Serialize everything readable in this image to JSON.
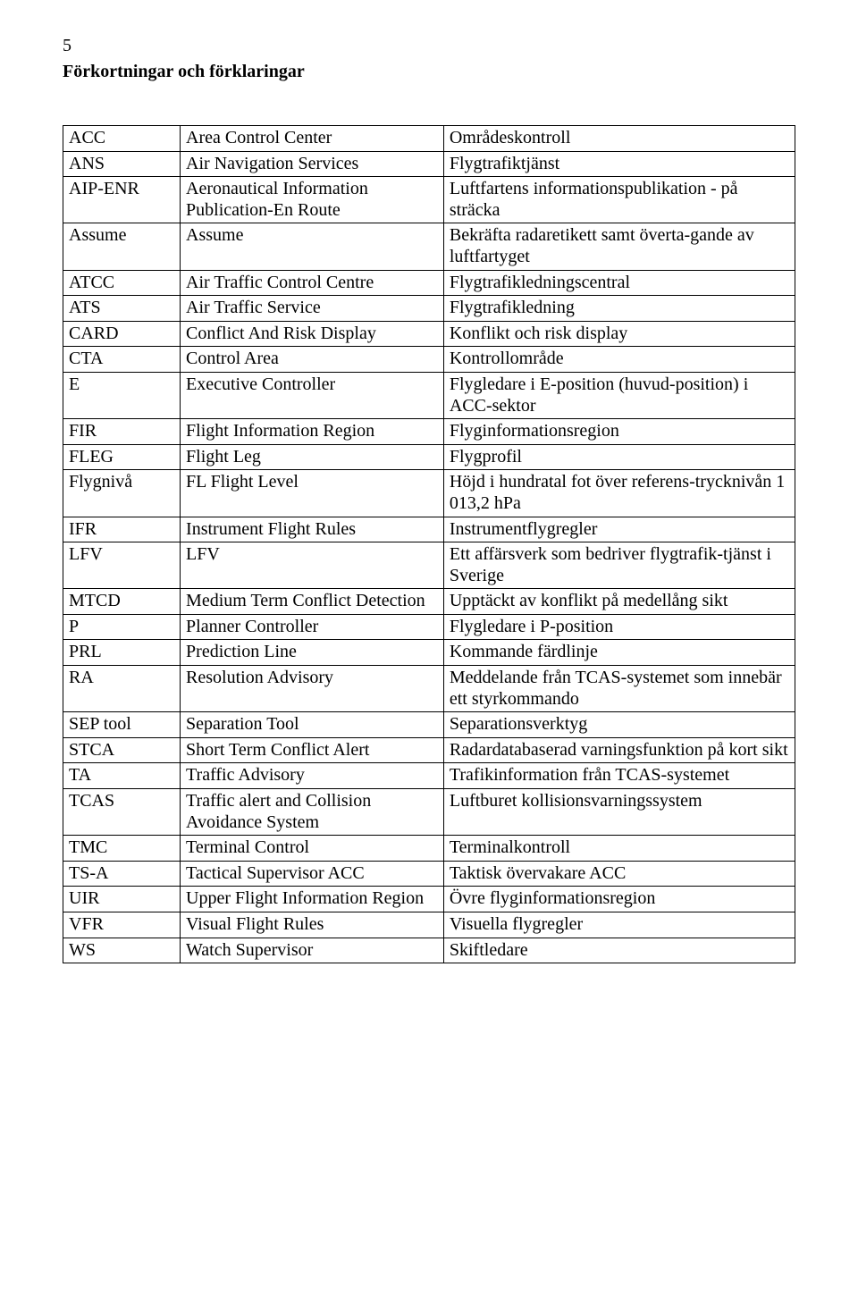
{
  "page_number": "5",
  "heading": "Förkortningar och förklaringar",
  "colors": {
    "text": "#000000",
    "background": "#ffffff",
    "border": "#000000"
  },
  "font": {
    "family": "Times New Roman",
    "size_body": 20,
    "size_heading": 20
  },
  "table": {
    "rows": [
      {
        "abbr": "ACC",
        "term": "Area Control Center",
        "desc": "Områdeskontroll"
      },
      {
        "abbr": "ANS",
        "term": "Air Navigation Services",
        "desc": "Flygtrafiktjänst"
      },
      {
        "abbr": "AIP-ENR",
        "term": "Aeronautical Information Publication-En Route",
        "desc": "Luftfartens informationspublikation - på sträcka"
      },
      {
        "abbr": "Assume",
        "term": "Assume",
        "desc": "Bekräfta radaretikett samt överta-gande av luftfartyget"
      },
      {
        "abbr": "ATCC",
        "term": "Air Traffic Control Centre",
        "desc": "Flygtrafikledningscentral"
      },
      {
        "abbr": "ATS",
        "term": "Air Traffic Service",
        "desc": "Flygtrafikledning"
      },
      {
        "abbr": "CARD",
        "term": "Conflict And Risk Display",
        "desc": "Konflikt och risk display"
      },
      {
        "abbr": "CTA",
        "term": "Control Area",
        "desc": "Kontrollområde"
      },
      {
        "abbr": "E",
        "term": "Executive Controller",
        "desc": "Flygledare i E-position (huvud-position) i ACC-sektor"
      },
      {
        "abbr": "FIR",
        "term": "Flight Information Region",
        "desc": "Flyginformationsregion"
      },
      {
        "abbr": "FLEG",
        "term": "Flight Leg",
        "desc": "Flygprofil"
      },
      {
        "abbr": "Flygnivå",
        "term": "FL Flight Level",
        "desc": "Höjd i hundratal fot över referens-trycknivån 1 013,2 hPa"
      },
      {
        "abbr": "IFR",
        "term": "Instrument Flight Rules",
        "desc": "Instrumentflygregler"
      },
      {
        "abbr": "LFV",
        "term": "LFV",
        "desc": "Ett affärsverk som bedriver flygtrafik-tjänst i Sverige"
      },
      {
        "abbr": "MTCD",
        "term": "Medium Term Conflict Detection",
        "desc": "Upptäckt av konflikt på medellång sikt"
      },
      {
        "abbr": "P",
        "term": "Planner Controller",
        "desc": "Flygledare i P-position"
      },
      {
        "abbr": "PRL",
        "term": "Prediction Line",
        "desc": "Kommande färdlinje"
      },
      {
        "abbr": "RA",
        "term": "Resolution Advisory",
        "desc": "Meddelande från TCAS-systemet som innebär ett styrkommando"
      },
      {
        "abbr": "SEP tool",
        "term": "Separation Tool",
        "desc": "Separationsverktyg"
      },
      {
        "abbr": "STCA",
        "term": "Short Term Conflict Alert",
        "desc": "Radardatabaserad varningsfunktion på kort sikt"
      },
      {
        "abbr": "TA",
        "term": "Traffic Advisory",
        "desc": "Trafikinformation från TCAS-systemet"
      },
      {
        "abbr": "TCAS",
        "term": "Traffic alert and Collision Avoidance System",
        "desc": "Luftburet kollisionsvarningssystem"
      },
      {
        "abbr": "TMC",
        "term": "Terminal Control",
        "desc": "Terminalkontroll"
      },
      {
        "abbr": "TS-A",
        "term": "Tactical Supervisor ACC",
        "desc": "Taktisk övervakare ACC"
      },
      {
        "abbr": "UIR",
        "term": "Upper Flight Information Region",
        "desc": "Övre flyginformationsregion"
      },
      {
        "abbr": "VFR",
        "term": "Visual Flight Rules",
        "desc": "Visuella flygregler"
      },
      {
        "abbr": "WS",
        "term": "Watch Supervisor",
        "desc": "Skiftledare"
      }
    ]
  }
}
